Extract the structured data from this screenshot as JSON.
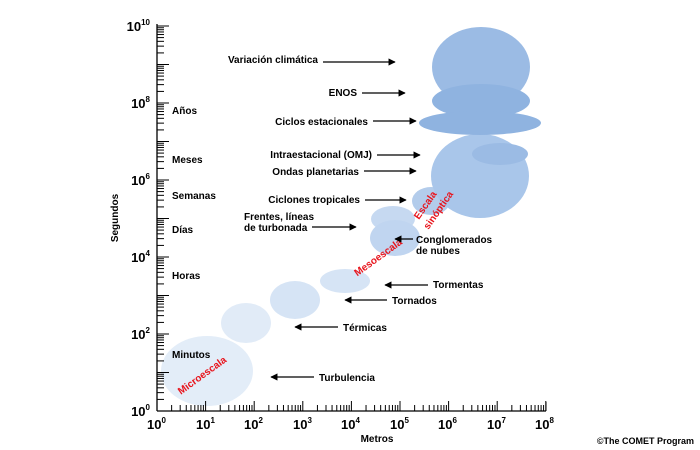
{
  "axes": {
    "y_title": "Segundos",
    "x_title": "Metros",
    "log_scale": true,
    "y_ticks": [
      {
        "base": "10",
        "exp": "0"
      },
      {
        "base": "10",
        "exp": "2"
      },
      {
        "base": "10",
        "exp": "4"
      },
      {
        "base": "10",
        "exp": "6"
      },
      {
        "base": "10",
        "exp": "8"
      },
      {
        "base": "10",
        "exp": "10"
      }
    ],
    "x_ticks": [
      {
        "base": "10",
        "exp": "0"
      },
      {
        "base": "10",
        "exp": "1"
      },
      {
        "base": "10",
        "exp": "2"
      },
      {
        "base": "10",
        "exp": "3"
      },
      {
        "base": "10",
        "exp": "4"
      },
      {
        "base": "10",
        "exp": "5"
      },
      {
        "base": "10",
        "exp": "6"
      },
      {
        "base": "10",
        "exp": "7"
      },
      {
        "base": "10",
        "exp": "8"
      }
    ]
  },
  "time_labels": [
    "Años",
    "Meses",
    "Semanas",
    "Días",
    "Horas",
    "Minutos"
  ],
  "scale_labels": [
    "Microescala",
    "Mesoescala",
    "Escala",
    "sinóptica"
  ],
  "phenomena": {
    "variacion": "Variación climática",
    "enos": "ENOS",
    "ciclos": "Ciclos estacionales",
    "omj": "Intraestacional (OMJ)",
    "ondas": "Ondas planetarias",
    "ciclones": "Ciclones tropicales",
    "frentes_1": "Frentes, líneas",
    "frentes_2": "de turbonada",
    "conglo_1": "Conglomerados",
    "conglo_2": "de nubes",
    "tormentas": "Tormentas",
    "tornados": "Tornados",
    "termicas": "Térmicas",
    "turbulencia": "Turbulencia"
  },
  "colors": {
    "bubble_dark": "#8fb3e0",
    "bubble_mid": "#a9c6ea",
    "bubble_light": "#dde9f7",
    "scale_label": "#e8141c"
  },
  "copyright": "©The COMET Program"
}
